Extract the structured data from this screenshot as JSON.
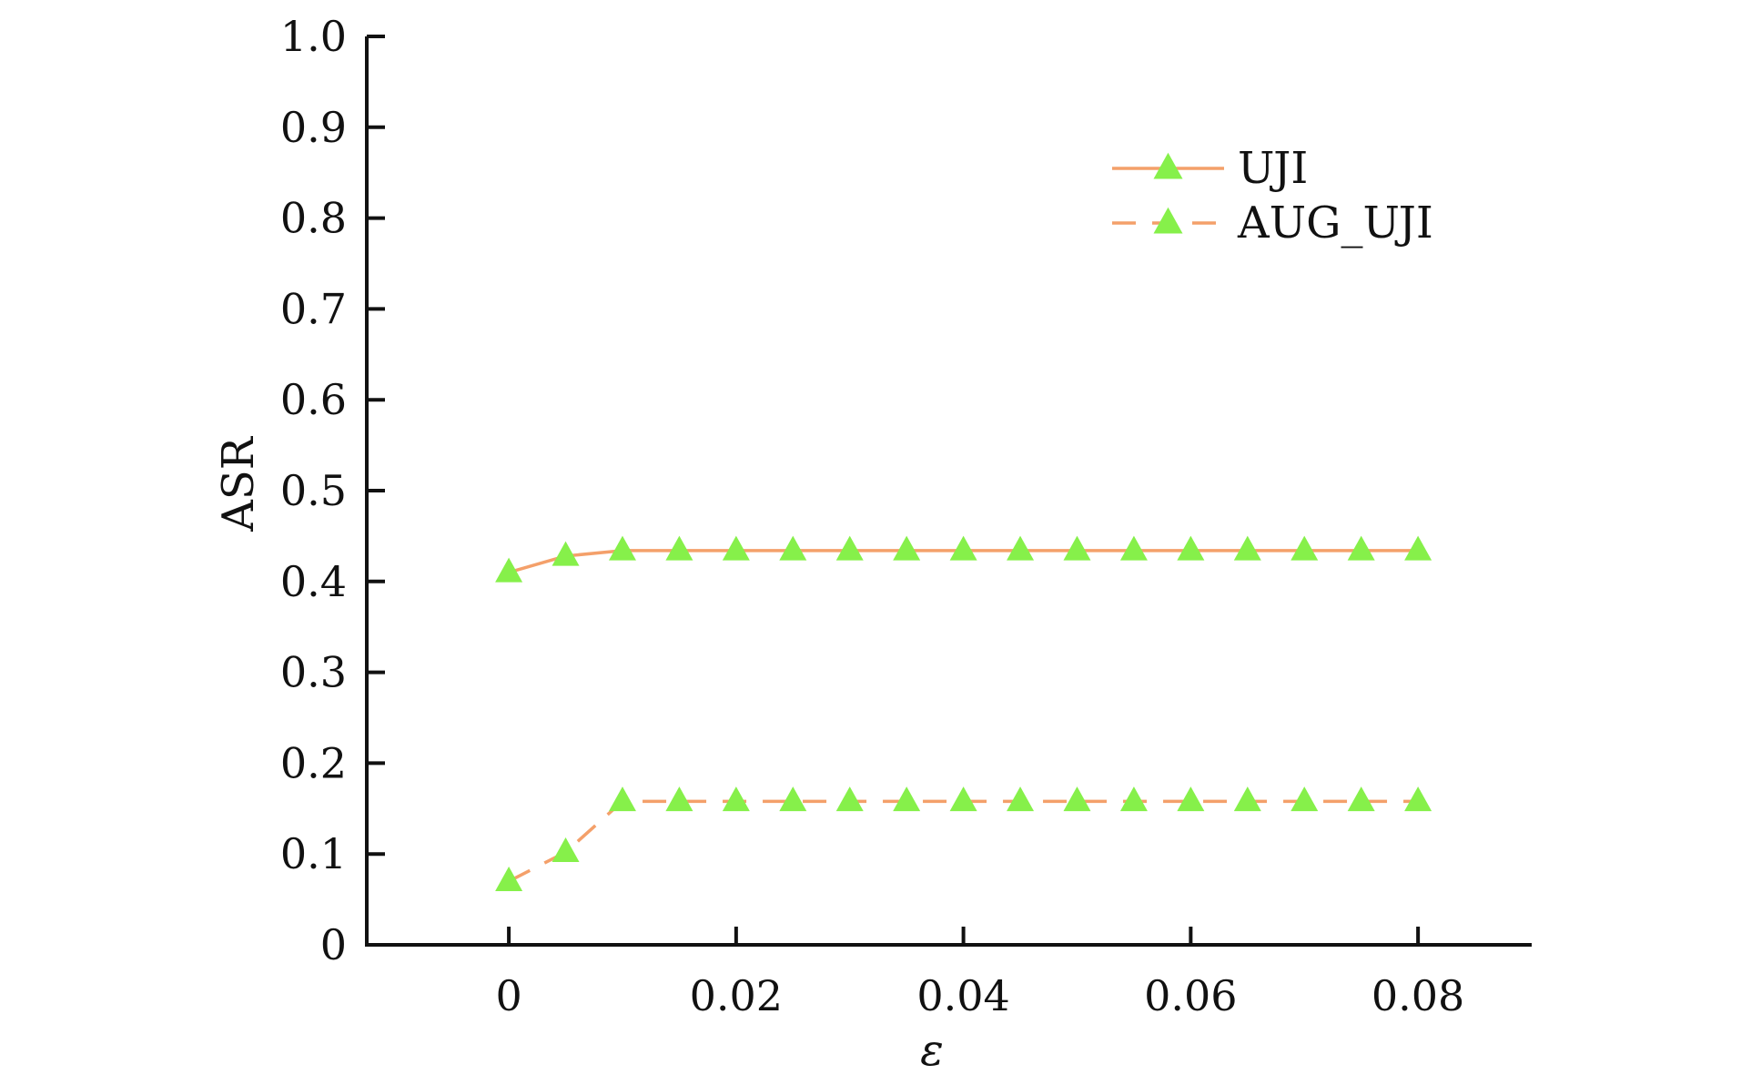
{
  "chart_data": {
    "type": "line",
    "xlabel": "ε",
    "ylabel": "ASR",
    "xlim": [
      -0.0125,
      0.09
    ],
    "ylim": [
      0,
      1.0
    ],
    "x_ticks": [
      "0",
      "0.02",
      "0.04",
      "0.06",
      "0.08"
    ],
    "y_ticks": [
      "0",
      "0.1",
      "0.2",
      "0.3",
      "0.4",
      "0.5",
      "0.6",
      "0.7",
      "0.8",
      "0.9",
      "1.0"
    ],
    "x": [
      0,
      0.005,
      0.01,
      0.015,
      0.02,
      0.025,
      0.03,
      0.035,
      0.04,
      0.045,
      0.05,
      0.055,
      0.06,
      0.065,
      0.07,
      0.075,
      0.08
    ],
    "series": [
      {
        "name": "UJI",
        "line_style": "solid",
        "values": [
          0.41,
          0.428,
          0.434,
          0.434,
          0.434,
          0.434,
          0.434,
          0.434,
          0.434,
          0.434,
          0.434,
          0.434,
          0.434,
          0.434,
          0.434,
          0.434,
          0.434
        ]
      },
      {
        "name": "AUG_UJI",
        "line_style": "dashed",
        "values": [
          0.07,
          0.102,
          0.158,
          0.158,
          0.158,
          0.158,
          0.158,
          0.158,
          0.158,
          0.158,
          0.158,
          0.158,
          0.158,
          0.158,
          0.158,
          0.158,
          0.158
        ]
      }
    ],
    "grid": false,
    "legend_position": "top-right",
    "marker": "triangle"
  },
  "colors": {
    "line": "#f4a06a",
    "marker": "#86f04a",
    "axis": "#111111"
  }
}
